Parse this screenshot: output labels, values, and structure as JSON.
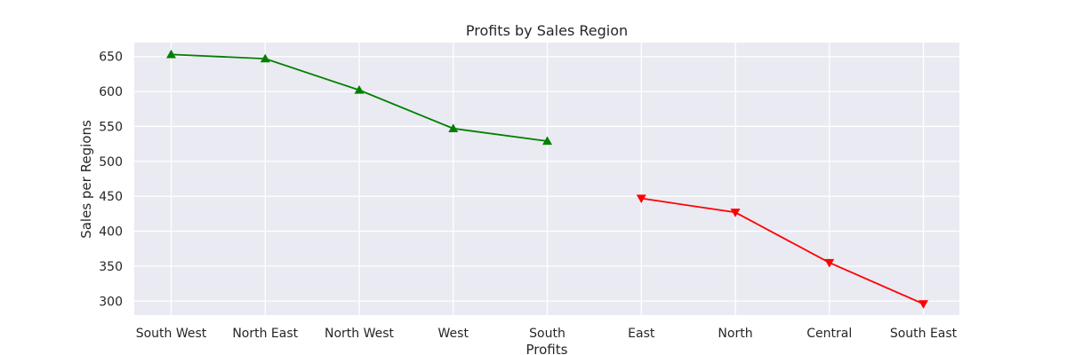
{
  "chart_data": {
    "type": "line",
    "title": "Profits by Sales Region",
    "xlabel": "Profits",
    "ylabel": "Sales per Regions",
    "categories": [
      "South West",
      "North East",
      "North West",
      "West",
      "South",
      "East",
      "North",
      "Central",
      "South East"
    ],
    "ylim": [
      280,
      670
    ],
    "yticks": [
      300,
      350,
      400,
      450,
      500,
      550,
      600,
      650
    ],
    "grid": true,
    "series": [
      {
        "color": "#008000",
        "marker": "triangle-up",
        "points": [
          {
            "category": "South West",
            "value": 653
          },
          {
            "category": "North East",
            "value": 647
          },
          {
            "category": "North West",
            "value": 602
          },
          {
            "category": "West",
            "value": 547
          },
          {
            "category": "South",
            "value": 529
          }
        ]
      },
      {
        "color": "#ff0000",
        "marker": "triangle-down",
        "points": [
          {
            "category": "East",
            "value": 447
          },
          {
            "category": "North",
            "value": 427
          },
          {
            "category": "Central",
            "value": 355
          },
          {
            "category": "South East",
            "value": 296
          }
        ]
      }
    ]
  }
}
